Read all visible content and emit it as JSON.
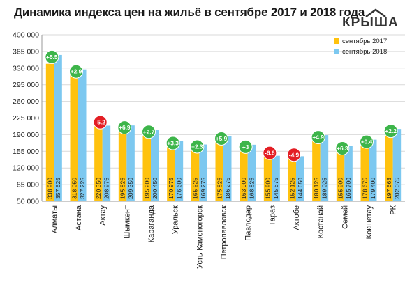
{
  "chart_data": {
    "type": "bar",
    "title": "Динамика индекса цен на жильё в сентябре 2017 и 2018 года",
    "categories": [
      "Алматы",
      "Астана",
      "Актау",
      "Шымкент",
      "Караганда",
      "Уральск",
      "Усть-Каменогорск",
      "Петропавловск",
      "Павлодар",
      "Тараз",
      "Актобе",
      "Костанай",
      "Семей",
      "Кокшетау",
      "РК"
    ],
    "series": [
      {
        "name": "сентябрь 2017",
        "color": "#FFC20E",
        "values": [
          338900,
          318050,
          220350,
          195825,
          195200,
          170975,
          165525,
          175825,
          163900,
          155900,
          152125,
          180125,
          155900,
          178675,
          197663
        ],
        "labels": [
          "338 900",
          "318 050",
          "220 350",
          "195 825",
          "195 200",
          "170 975",
          "165 525",
          "175 825",
          "163 900",
          "155 900",
          "152 125",
          "180 125",
          "155 900",
          "178 675",
          "197 663"
        ]
      },
      {
        "name": "сентябрь 2018",
        "color": "#7CC8F0",
        "values": [
          357625,
          327225,
          208975,
          209350,
          200450,
          176600,
          169275,
          186275,
          168825,
          145675,
          144650,
          189025,
          165700,
          179400,
          202075
        ],
        "labels": [
          "357 625",
          "327 225",
          "208 975",
          "209 350",
          "200 450",
          "176 600",
          "169 275",
          "186 275",
          "168 825",
          "145 675",
          "144 650",
          "189 025",
          "165 700",
          "179 400",
          "202 075"
        ]
      }
    ],
    "changes": [
      "+5.5",
      "+2.9",
      "-5.2",
      "+6.9",
      "+2.7",
      "+3.3",
      "+2.3",
      "+5.9",
      "+3",
      "-6.6",
      "-4.9",
      "+4.9",
      "+6.3",
      "+0.4",
      "+2.2"
    ],
    "change_colors": {
      "positive": "#3DB54A",
      "negative": "#E31E24"
    },
    "ylim": [
      50000,
      400000
    ],
    "yticks": [
      50000,
      85000,
      120000,
      155000,
      190000,
      225000,
      260000,
      295000,
      330000,
      365000,
      400000
    ],
    "ytick_labels": [
      "50 000",
      "85 000",
      "120 000",
      "155 000",
      "190 000",
      "225 000",
      "260 000",
      "295 000",
      "330 000",
      "365 000",
      "400 000"
    ],
    "legend_position": "right",
    "grid": true
  },
  "logo": {
    "text": "КРЫША"
  }
}
